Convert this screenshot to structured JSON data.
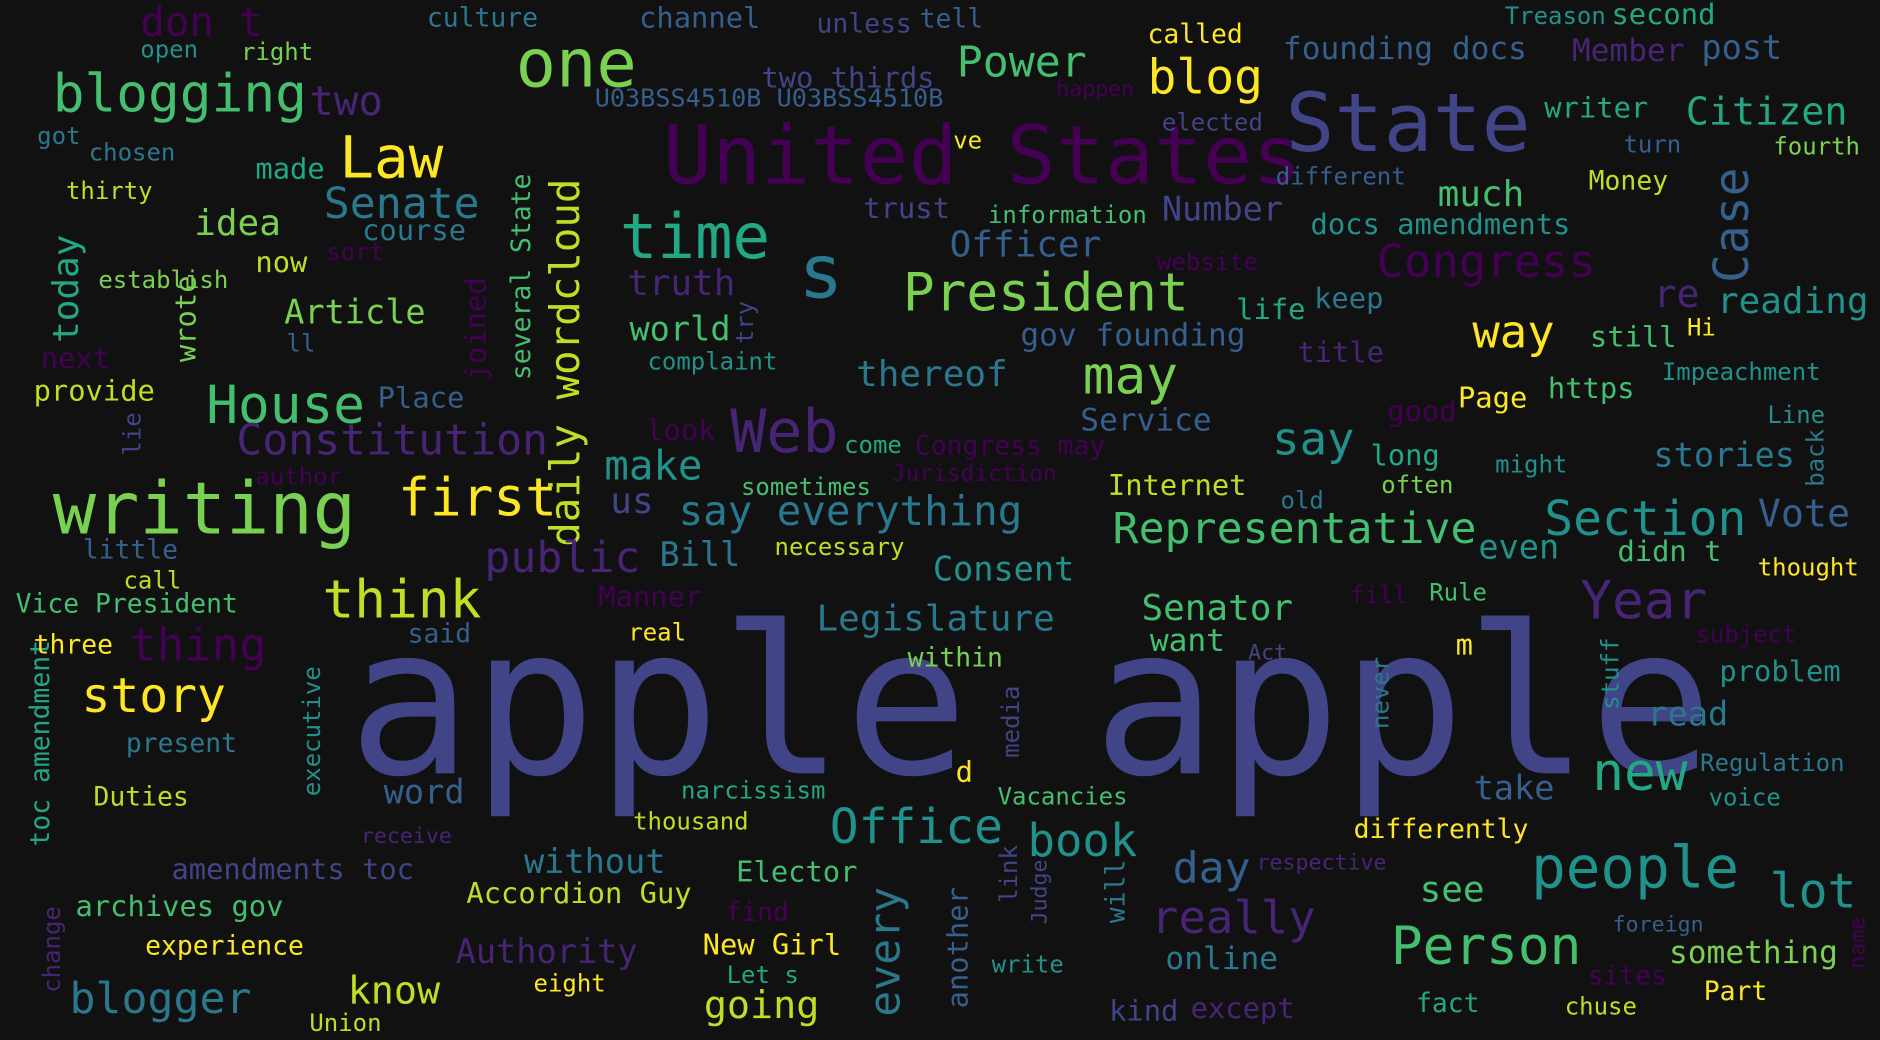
{
  "colors": {
    "background": "#111111",
    "palette": [
      "#440154",
      "#482475",
      "#414487",
      "#355f8d",
      "#2a788e",
      "#21918c",
      "#22a884",
      "#44bf70",
      "#7ad151",
      "#bddf26",
      "#fde725"
    ]
  },
  "words": [
    {
      "text": "apple apple",
      "color": "#414487"
    },
    {
      "text": "United States",
      "color": "#440154"
    },
    {
      "text": "State",
      "color": "#414487"
    },
    {
      "text": "writing",
      "color": "#7ad151"
    },
    {
      "text": "one",
      "color": "#7ad151"
    },
    {
      "text": "time",
      "color": "#22a884"
    },
    {
      "text": "s",
      "color": "#2a788e"
    },
    {
      "text": "President",
      "color": "#7ad151"
    },
    {
      "text": "Web",
      "color": "#482475"
    },
    {
      "text": "blogging",
      "color": "#44bf70"
    },
    {
      "text": "Law",
      "color": "#fde725"
    },
    {
      "text": "first",
      "color": "#fde725"
    },
    {
      "text": "think",
      "color": "#bddf26"
    },
    {
      "text": "House",
      "color": "#44bf70"
    },
    {
      "text": "Constitution",
      "color": "#482475"
    },
    {
      "text": "daily wordcloud",
      "color": "#bddf26"
    },
    {
      "text": "may",
      "color": "#7ad151"
    },
    {
      "text": "Congress",
      "color": "#440154"
    },
    {
      "text": "Case",
      "color": "#355f8d"
    },
    {
      "text": "Representative",
      "color": "#44bf70"
    },
    {
      "text": "Section",
      "color": "#21918c"
    },
    {
      "text": "Year",
      "color": "#482475"
    },
    {
      "text": "people",
      "color": "#21918c"
    },
    {
      "text": "Person",
      "color": "#44bf70"
    },
    {
      "text": "new",
      "color": "#22a884"
    },
    {
      "text": "story",
      "color": "#fde725"
    },
    {
      "text": "blog",
      "color": "#fde725"
    },
    {
      "text": "Power",
      "color": "#44bf70"
    },
    {
      "text": "Office",
      "color": "#21918c"
    },
    {
      "text": "book",
      "color": "#21918c"
    },
    {
      "text": "every",
      "color": "#2a788e"
    },
    {
      "text": "really",
      "color": "#482475"
    },
    {
      "text": "lot",
      "color": "#21918c"
    },
    {
      "text": "blogger",
      "color": "#2a788e"
    },
    {
      "text": "Citizen",
      "color": "#22a884"
    },
    {
      "text": "Senate",
      "color": "#2a788e"
    },
    {
      "text": "thing",
      "color": "#440154"
    },
    {
      "text": "way",
      "color": "#fde725"
    },
    {
      "text": "say everything",
      "color": "#2a788e"
    },
    {
      "text": "public",
      "color": "#482475"
    },
    {
      "text": "make",
      "color": "#21918c"
    },
    {
      "text": "say",
      "color": "#21918c"
    },
    {
      "text": "day",
      "color": "#355f8d"
    },
    {
      "text": "two",
      "color": "#482475"
    },
    {
      "text": "don t",
      "color": "#440154"
    },
    {
      "text": "idea",
      "color": "#7ad151"
    },
    {
      "text": "Article",
      "color": "#7ad151"
    },
    {
      "text": "today",
      "color": "#22a884"
    },
    {
      "text": "Legislature",
      "color": "#2a788e"
    },
    {
      "text": "Senator",
      "color": "#44bf70"
    },
    {
      "text": "Vote",
      "color": "#355f8d"
    },
    {
      "text": "know",
      "color": "#bddf26"
    },
    {
      "text": "going",
      "color": "#bddf26"
    },
    {
      "text": "reading",
      "color": "#21918c"
    },
    {
      "text": "much",
      "color": "#44bf70"
    },
    {
      "text": "stories",
      "color": "#2a788e"
    },
    {
      "text": "re",
      "color": "#482475"
    },
    {
      "text": "Officer",
      "color": "#355f8d"
    },
    {
      "text": "thereof",
      "color": "#2a788e"
    },
    {
      "text": "Number",
      "color": "#414487"
    },
    {
      "text": "truth",
      "color": "#482475"
    },
    {
      "text": "world",
      "color": "#44bf70"
    },
    {
      "text": "word",
      "color": "#355f8d"
    },
    {
      "text": "without",
      "color": "#2a788e"
    },
    {
      "text": "Bill",
      "color": "#2a788e"
    },
    {
      "text": "Consent",
      "color": "#21918c"
    },
    {
      "text": "Authority",
      "color": "#482475"
    },
    {
      "text": "founding docs",
      "color": "#355f8d"
    },
    {
      "text": "gov founding",
      "color": "#355f8d"
    },
    {
      "text": "docs amendments",
      "color": "#21918c"
    },
    {
      "text": "Member",
      "color": "#482475"
    },
    {
      "text": "post",
      "color": "#355f8d"
    },
    {
      "text": "Service",
      "color": "#355f8d"
    },
    {
      "text": "Place",
      "color": "#355f8d"
    },
    {
      "text": "us",
      "color": "#414487"
    },
    {
      "text": "take",
      "color": "#355f8d"
    },
    {
      "text": "see",
      "color": "#44bf70"
    },
    {
      "text": "Internet",
      "color": "#bddf26"
    },
    {
      "text": "even",
      "color": "#21918c"
    },
    {
      "text": "didn t",
      "color": "#44bf70"
    },
    {
      "text": "want",
      "color": "#44bf70"
    },
    {
      "text": "online",
      "color": "#2a788e"
    },
    {
      "text": "read",
      "color": "#2a788e"
    },
    {
      "text": "problem",
      "color": "#21918c"
    },
    {
      "text": "something",
      "color": "#7ad151"
    },
    {
      "text": "Elector",
      "color": "#44bf70"
    },
    {
      "text": "Accordion Guy",
      "color": "#bddf26"
    },
    {
      "text": "New Girl",
      "color": "#fde725"
    },
    {
      "text": "amendments toc",
      "color": "#414487"
    },
    {
      "text": "archives gov",
      "color": "#44bf70"
    },
    {
      "text": "several State",
      "color": "#44bf70"
    },
    {
      "text": "toc amendment",
      "color": "#22a884"
    },
    {
      "text": "provide",
      "color": "#bddf26"
    },
    {
      "text": "course",
      "color": "#2a788e"
    },
    {
      "text": "two thirds",
      "color": "#414487"
    },
    {
      "text": "U03BSS4510B U03BSS4510B",
      "color": "#355f8d"
    },
    {
      "text": "channel",
      "color": "#355f8d"
    },
    {
      "text": "culture",
      "color": "#2a788e"
    },
    {
      "text": "unless",
      "color": "#414487"
    },
    {
      "text": "tell",
      "color": "#355f8d"
    },
    {
      "text": "called",
      "color": "#fde725"
    },
    {
      "text": "Treason",
      "color": "#21918c"
    },
    {
      "text": "second",
      "color": "#22a884"
    },
    {
      "text": "open",
      "color": "#21918c"
    },
    {
      "text": "right",
      "color": "#7ad151"
    },
    {
      "text": "got",
      "color": "#2a788e"
    },
    {
      "text": "chosen",
      "color": "#2a788e"
    },
    {
      "text": "made",
      "color": "#22a884"
    },
    {
      "text": "thirty",
      "color": "#bddf26"
    },
    {
      "text": "happen",
      "color": "#440154"
    },
    {
      "text": "elected",
      "color": "#414487"
    },
    {
      "text": "ve",
      "color": "#fde725"
    },
    {
      "text": "writer",
      "color": "#22a884"
    },
    {
      "text": "turn",
      "color": "#355f8d"
    },
    {
      "text": "fourth",
      "color": "#7ad151"
    },
    {
      "text": "different",
      "color": "#355f8d"
    },
    {
      "text": "Money",
      "color": "#bddf26"
    },
    {
      "text": "trust",
      "color": "#414487"
    },
    {
      "text": "information",
      "color": "#44bf70"
    },
    {
      "text": "sort",
      "color": "#440154"
    },
    {
      "text": "establish",
      "color": "#7ad151"
    },
    {
      "text": "now",
      "color": "#bddf26"
    },
    {
      "text": "website",
      "color": "#440154"
    },
    {
      "text": "keep",
      "color": "#2a788e"
    },
    {
      "text": "life",
      "color": "#22a884"
    },
    {
      "text": "title",
      "color": "#482475"
    },
    {
      "text": "still",
      "color": "#44bf70"
    },
    {
      "text": "Hi",
      "color": "#fde725"
    },
    {
      "text": "Impeachment",
      "color": "#21918c"
    },
    {
      "text": "https",
      "color": "#44bf70"
    },
    {
      "text": "Page",
      "color": "#fde725"
    },
    {
      "text": "good",
      "color": "#440154"
    },
    {
      "text": "ll",
      "color": "#355f8d"
    },
    {
      "text": "next",
      "color": "#440154"
    },
    {
      "text": "wrote",
      "color": "#7ad151"
    },
    {
      "text": "joined",
      "color": "#440154"
    },
    {
      "text": "try",
      "color": "#414487"
    },
    {
      "text": "complaint",
      "color": "#21918c"
    },
    {
      "text": "lie",
      "color": "#414487"
    },
    {
      "text": "author",
      "color": "#440154"
    },
    {
      "text": "look",
      "color": "#440154"
    },
    {
      "text": "come",
      "color": "#22a884"
    },
    {
      "text": "Congress may",
      "color": "#440154"
    },
    {
      "text": "long",
      "color": "#22a884"
    },
    {
      "text": "might",
      "color": "#21918c"
    },
    {
      "text": "Line",
      "color": "#21918c"
    },
    {
      "text": "back",
      "color": "#2a788e"
    },
    {
      "text": "sometimes",
      "color": "#44bf70"
    },
    {
      "text": "Jurisdiction",
      "color": "#440154"
    },
    {
      "text": "old",
      "color": "#2a788e"
    },
    {
      "text": "often",
      "color": "#7ad151"
    },
    {
      "text": "little",
      "color": "#355f8d"
    },
    {
      "text": "necessary",
      "color": "#bddf26"
    },
    {
      "text": "thought",
      "color": "#fde725"
    },
    {
      "text": "call",
      "color": "#bddf26"
    },
    {
      "text": "Vice President",
      "color": "#44bf70"
    },
    {
      "text": "Manner",
      "color": "#440154"
    },
    {
      "text": "fill",
      "color": "#440154"
    },
    {
      "text": "Rule",
      "color": "#44bf70"
    },
    {
      "text": "said",
      "color": "#355f8d"
    },
    {
      "text": "real",
      "color": "#fde725"
    },
    {
      "text": "subject",
      "color": "#440154"
    },
    {
      "text": "three",
      "color": "#fde725"
    },
    {
      "text": "within",
      "color": "#7ad151"
    },
    {
      "text": "Act",
      "color": "#414487"
    },
    {
      "text": "m",
      "color": "#fde725"
    },
    {
      "text": "stuff",
      "color": "#21918c"
    },
    {
      "text": "never",
      "color": "#2a788e"
    },
    {
      "text": "present",
      "color": "#2a788e"
    },
    {
      "text": "executive",
      "color": "#21918c"
    },
    {
      "text": "media",
      "color": "#414487"
    },
    {
      "text": "Regulation",
      "color": "#2a788e"
    },
    {
      "text": "voice",
      "color": "#21918c"
    },
    {
      "text": "Duties",
      "color": "#bddf26"
    },
    {
      "text": "d",
      "color": "#fde725"
    },
    {
      "text": "narcissism",
      "color": "#22a884"
    },
    {
      "text": "Vacancies",
      "color": "#44bf70"
    },
    {
      "text": "thousand",
      "color": "#bddf26"
    },
    {
      "text": "receive",
      "color": "#482475"
    },
    {
      "text": "differently",
      "color": "#fde725"
    },
    {
      "text": "respective",
      "color": "#482475"
    },
    {
      "text": "link",
      "color": "#414487"
    },
    {
      "text": "Judge",
      "color": "#414487"
    },
    {
      "text": "will",
      "color": "#2a788e"
    },
    {
      "text": "another",
      "color": "#355f8d"
    },
    {
      "text": "find",
      "color": "#440154"
    },
    {
      "text": "experience",
      "color": "#fde725"
    },
    {
      "text": "foreign",
      "color": "#355f8d"
    },
    {
      "text": "name",
      "color": "#440154"
    },
    {
      "text": "Let s",
      "color": "#22a884"
    },
    {
      "text": "write",
      "color": "#21918c"
    },
    {
      "text": "sites",
      "color": "#440154"
    },
    {
      "text": "Part",
      "color": "#fde725"
    },
    {
      "text": "change",
      "color": "#482475"
    },
    {
      "text": "eight",
      "color": "#fde725"
    },
    {
      "text": "Union",
      "color": "#bddf26"
    },
    {
      "text": "kind",
      "color": "#414487"
    },
    {
      "text": "except",
      "color": "#482475"
    },
    {
      "text": "fact",
      "color": "#22a884"
    },
    {
      "text": "chuse",
      "color": "#bddf26"
    }
  ]
}
